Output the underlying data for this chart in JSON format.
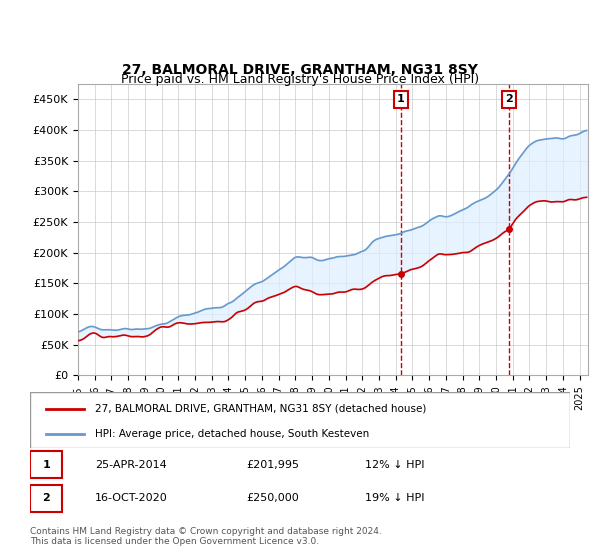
{
  "title": "27, BALMORAL DRIVE, GRANTHAM, NG31 8SY",
  "subtitle": "Price paid vs. HM Land Registry's House Price Index (HPI)",
  "ylabel_ticks": [
    "£0",
    "£50K",
    "£100K",
    "£150K",
    "£200K",
    "£250K",
    "£300K",
    "£350K",
    "£400K",
    "£450K"
  ],
  "ytick_values": [
    0,
    50000,
    100000,
    150000,
    200000,
    250000,
    300000,
    350000,
    400000,
    450000
  ],
  "ylim": [
    0,
    475000
  ],
  "xlim_start": 1995.0,
  "xlim_end": 2025.5,
  "bg_color": "#ffffff",
  "plot_bg_color": "#ffffff",
  "grid_color": "#cccccc",
  "red_line_color": "#cc0000",
  "blue_line_color": "#6699cc",
  "shade_color": "#ddeeff",
  "marker1_x": 2014.32,
  "marker1_y": 201995,
  "marker2_x": 2020.79,
  "marker2_y": 250000,
  "marker1_label": "1",
  "marker2_label": "2",
  "vline1_color": "#cc0000",
  "vline2_color": "#cc0000",
  "legend_red_label": "27, BALMORAL DRIVE, GRANTHAM, NG31 8SY (detached house)",
  "legend_blue_label": "HPI: Average price, detached house, South Kesteven",
  "table_row1": [
    "1",
    "25-APR-2014",
    "£201,995",
    "12% ↓ HPI"
  ],
  "table_row2": [
    "2",
    "16-OCT-2020",
    "£250,000",
    "19% ↓ HPI"
  ],
  "footnote": "Contains HM Land Registry data © Crown copyright and database right 2024.\nThis data is licensed under the Open Government Licence v3.0.",
  "xtick_years": [
    1995,
    1996,
    1997,
    1998,
    1999,
    2000,
    2001,
    2002,
    2003,
    2004,
    2005,
    2006,
    2007,
    2008,
    2009,
    2010,
    2011,
    2012,
    2013,
    2014,
    2015,
    2016,
    2017,
    2018,
    2019,
    2020,
    2021,
    2022,
    2023,
    2024,
    2025
  ]
}
